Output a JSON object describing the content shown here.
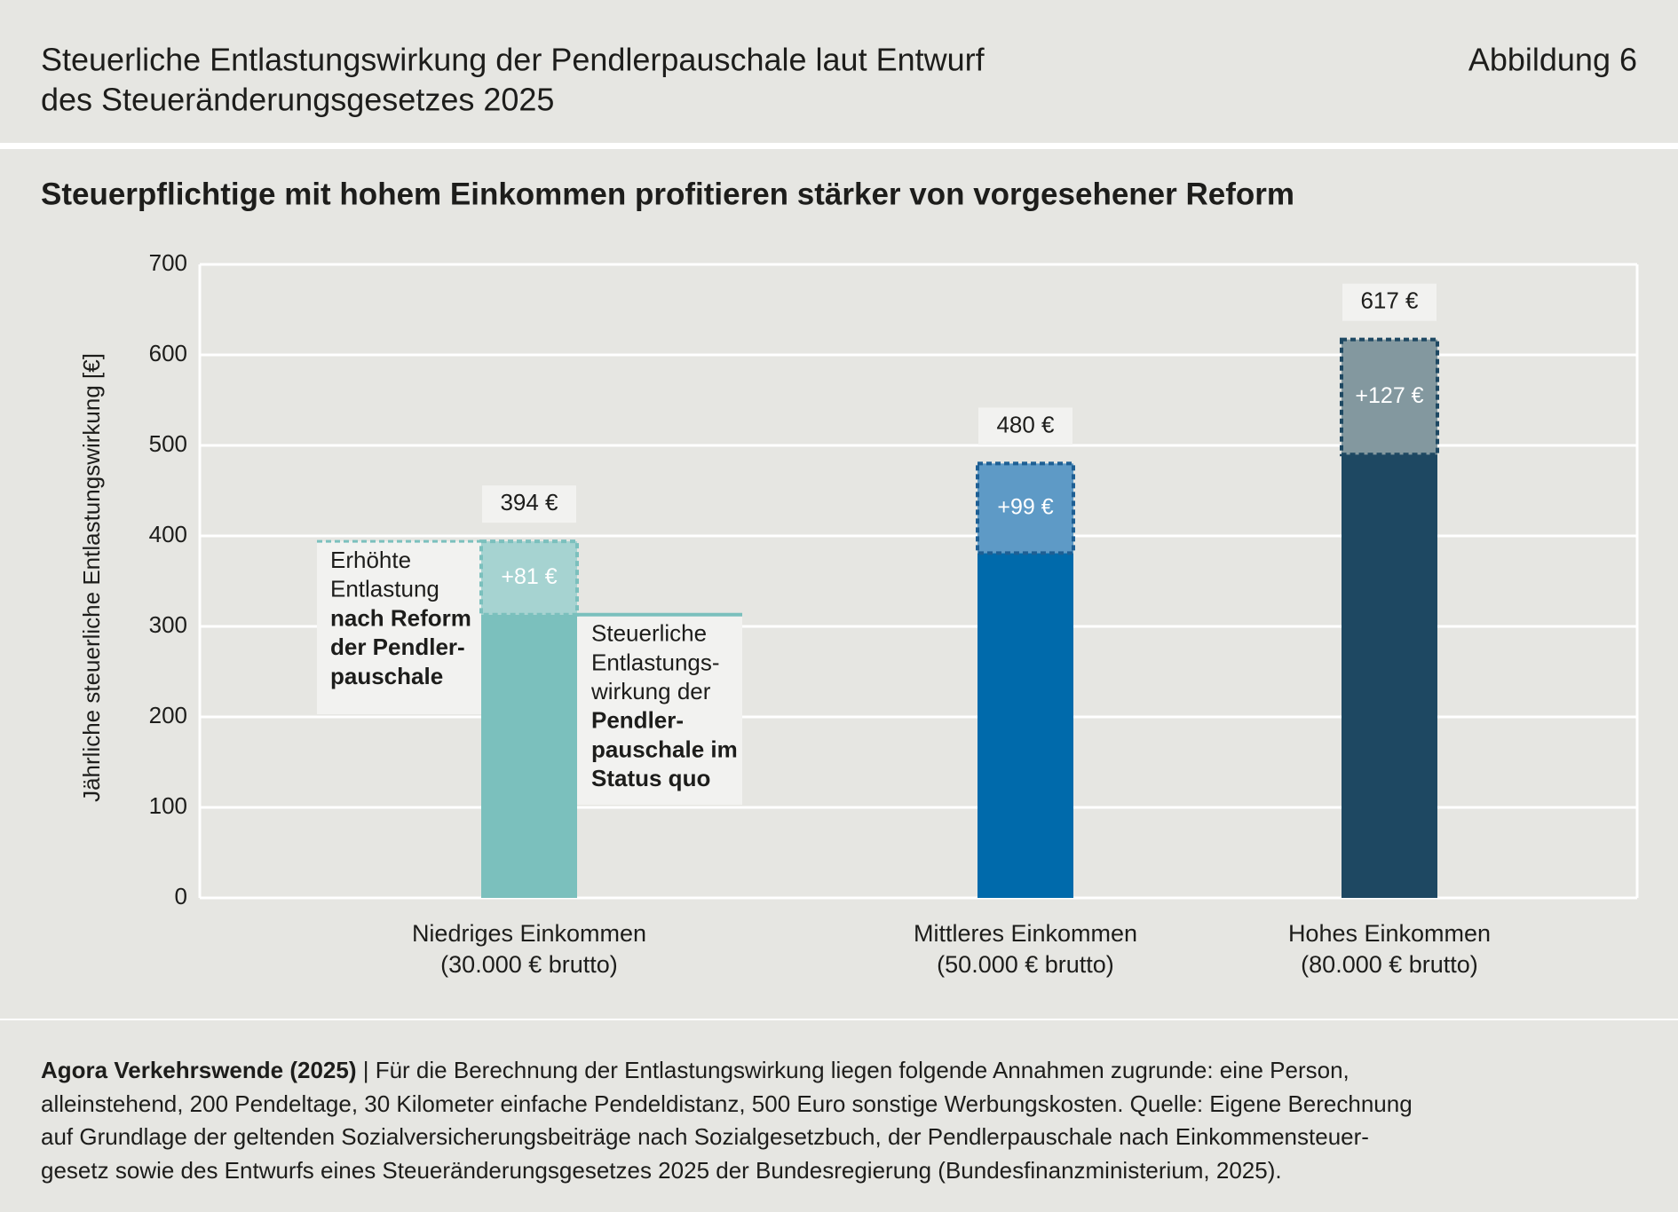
{
  "header": {
    "title_lines": [
      "Steuerliche Entlastungswirkung der Pendlerpauschale laut Entwurf",
      "des Steueränderungsgesetzes 2025"
    ],
    "figure_label": "Abbildung 6"
  },
  "chart_data": {
    "type": "bar",
    "stacked": true,
    "title": "Steuerpflichtige mit hohem Einkommen profitieren stärker von vorgesehener Reform",
    "y_label": "Jährliche steuerliche Entlastungswirkung [€]",
    "categories": [
      "Niedriges Einkommen",
      "Mittleres Einkommen",
      "Hohes Einkommen"
    ],
    "category_notes": [
      "(30.000 € brutto)",
      "(50.000 € brutto)",
      "(80.000 € brutto)"
    ],
    "series": [
      {
        "values": [
          313,
          381,
          490
        ],
        "colors": [
          "#7bc0bd",
          "#006aab",
          "#1e4862"
        ]
      },
      {
        "values": [
          81,
          99,
          127
        ],
        "value_labels": [
          "+81 €",
          "+99 €",
          "+127 €"
        ],
        "colors": [
          "#a6d3d1",
          "#5e9ac6",
          "#83989f"
        ],
        "border_colors": [
          "#7bc0bd",
          "#1e5f94",
          "#1e4862"
        ],
        "dashed": true
      }
    ],
    "totals": [
      394,
      480,
      617
    ],
    "total_labels": [
      "394 €",
      "480 €",
      "617 €"
    ],
    "ylim": [
      0,
      700
    ],
    "yticks": [
      0,
      100,
      200,
      300,
      400,
      500,
      600,
      700
    ],
    "grid": true,
    "annotations": [
      {
        "lines": [
          {
            "text": "Erhöhte",
            "bold": false
          },
          {
            "text": "Entlastung",
            "bold": false
          },
          {
            "text": "nach Reform",
            "bold": true
          },
          {
            "text": "der Pendler-",
            "bold": true
          },
          {
            "text": "pauschale",
            "bold": true
          }
        ]
      },
      {
        "lines": [
          {
            "text": "Steuerliche",
            "bold": false
          },
          {
            "text": "Entlastungs-",
            "bold": false
          },
          {
            "text": "wirkung der",
            "bold": false
          },
          {
            "text": "Pendler-",
            "bold": true
          },
          {
            "text": "pauschale im",
            "bold": true
          },
          {
            "text": "Status quo",
            "bold": true
          }
        ]
      }
    ]
  },
  "footer": {
    "source": "Agora Verkehrswende (2025)",
    "lines": [
      "| Für die Berechnung der Entlastungswirkung liegen folgende Annahmen zugrunde: eine Person,",
      "alleinstehend, 200 Pendeltage, 30 Kilometer einfache Pendeldistanz, 500 Euro sonstige Werbungskosten. Quelle: Eigene Berechnung",
      "auf Grundlage der geltenden Sozialversicherungsbeiträge nach Sozialgesetzbuch, der Pendlerpauschale nach Einkommensteuer-",
      "gesetz sowie des Entwurfs eines Steueränderungsgesetzes 2025 der Bundesregierung (Bundesfinanzministerium, 2025)."
    ]
  }
}
